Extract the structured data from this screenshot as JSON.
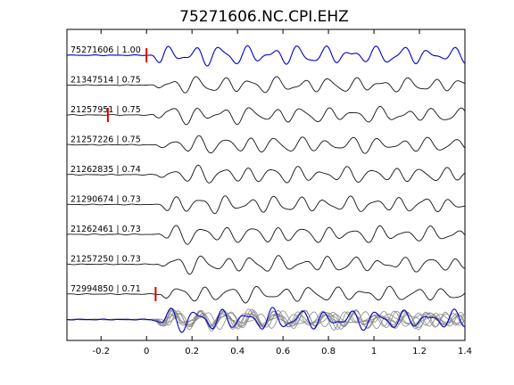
{
  "chart_data": {
    "type": "line",
    "title": "75271606.NC.CPI.EHZ",
    "xlabel": "",
    "ylabel": "",
    "xlim": [
      -0.35,
      1.4
    ],
    "xticks": [
      "-0.2",
      "0",
      "0.2",
      "0.4",
      "0.6",
      "0.8",
      "1",
      "1.2",
      "1.4"
    ],
    "xtick_values": [
      -0.2,
      0,
      0.2,
      0.4,
      0.6,
      0.8,
      1.0,
      1.2,
      1.4
    ],
    "grid": false,
    "legend": "none",
    "colors": {
      "reference_trace": "#0000cc",
      "trace": "#111111",
      "stack_trace": "#888888",
      "pick_marker": "#dd0000",
      "axes": "#000000"
    },
    "series": [
      {
        "id": "75271606",
        "cc": "1.00",
        "label": "75271606 | 1.00",
        "reference": true,
        "pick_time": 0.0,
        "onset": 0.02,
        "amplitude": 1.0
      },
      {
        "id": "21347514",
        "cc": "0.75",
        "label": "21347514 | 0.75",
        "reference": false,
        "pick_time": null,
        "onset": 0.03,
        "amplitude": 0.85
      },
      {
        "id": "21257951",
        "cc": "0.75",
        "label": "21257951 | 0.75",
        "reference": false,
        "pick_time": -0.17,
        "onset": 0.03,
        "amplitude": 0.85
      },
      {
        "id": "21257226",
        "cc": "0.75",
        "label": "21257226 | 0.75",
        "reference": false,
        "pick_time": null,
        "onset": 0.04,
        "amplitude": 0.9
      },
      {
        "id": "21262835",
        "cc": "0.74",
        "label": "21262835 | 0.74",
        "reference": false,
        "pick_time": null,
        "onset": 0.04,
        "amplitude": 0.9
      },
      {
        "id": "21290674",
        "cc": "0.73",
        "label": "21290674 | 0.73",
        "reference": false,
        "pick_time": null,
        "onset": 0.05,
        "amplitude": 0.9
      },
      {
        "id": "21262461",
        "cc": "0.73",
        "label": "21262461 | 0.73",
        "reference": false,
        "pick_time": null,
        "onset": 0.05,
        "amplitude": 0.9
      },
      {
        "id": "21257250",
        "cc": "0.73",
        "label": "21257250 | 0.73",
        "reference": false,
        "pick_time": null,
        "onset": 0.05,
        "amplitude": 0.85
      },
      {
        "id": "72994850",
        "cc": "0.71",
        "label": "72994850 | 0.71",
        "reference": false,
        "pick_time": 0.04,
        "onset": 0.06,
        "amplitude": 0.85
      }
    ],
    "stack": {
      "label": "",
      "overlay_count": 9
    }
  }
}
